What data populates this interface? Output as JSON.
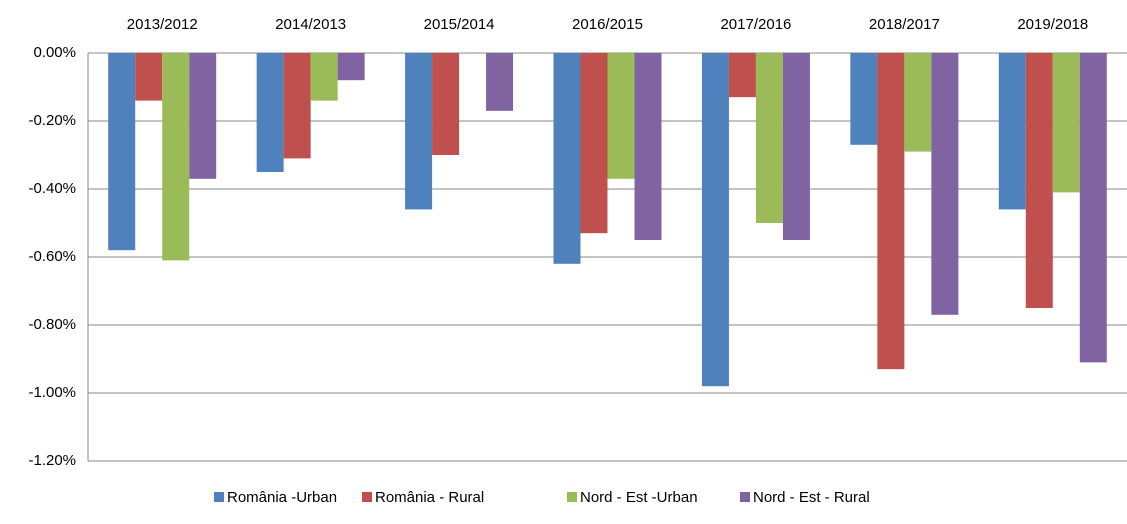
{
  "chart_data": {
    "type": "bar",
    "categories": [
      "2013/2012",
      "2014/2013",
      "2015/2014",
      "2016/2015",
      "2017/2016",
      "2018/2017",
      "2019/2018"
    ],
    "series": [
      {
        "name": "România -Urban",
        "color": "#4f81bd",
        "values": [
          -0.58,
          -0.35,
          -0.46,
          -0.62,
          -0.98,
          -0.27,
          -0.46
        ]
      },
      {
        "name": "România - Rural",
        "color": "#c0504d",
        "values": [
          -0.14,
          -0.31,
          -0.3,
          -0.53,
          -0.13,
          -0.93,
          -0.75
        ]
      },
      {
        "name": "Nord - Est -Urban",
        "color": "#9bbb59",
        "values": [
          -0.61,
          -0.14,
          0,
          -0.37,
          -0.5,
          -0.29,
          -0.41
        ]
      },
      {
        "name": "Nord - Est - Rural",
        "color": "#8064a2",
        "values": [
          -0.37,
          -0.08,
          -0.17,
          -0.55,
          -0.55,
          -0.77,
          -0.91
        ]
      }
    ],
    "ylim": [
      -1.2,
      0
    ],
    "yticks": [
      {
        "value": 0,
        "label": "0.00%"
      },
      {
        "value": -0.2,
        "label": "-0.20%"
      },
      {
        "value": -0.4,
        "label": "-0.40%"
      },
      {
        "value": -0.6,
        "label": "-0.60%"
      },
      {
        "value": -0.8,
        "label": "-0.80%"
      },
      {
        "value": -1.0,
        "label": "-1.00%"
      },
      {
        "value": -1.2,
        "label": "-1.20%"
      }
    ],
    "grid": true,
    "legend": "bottom"
  }
}
